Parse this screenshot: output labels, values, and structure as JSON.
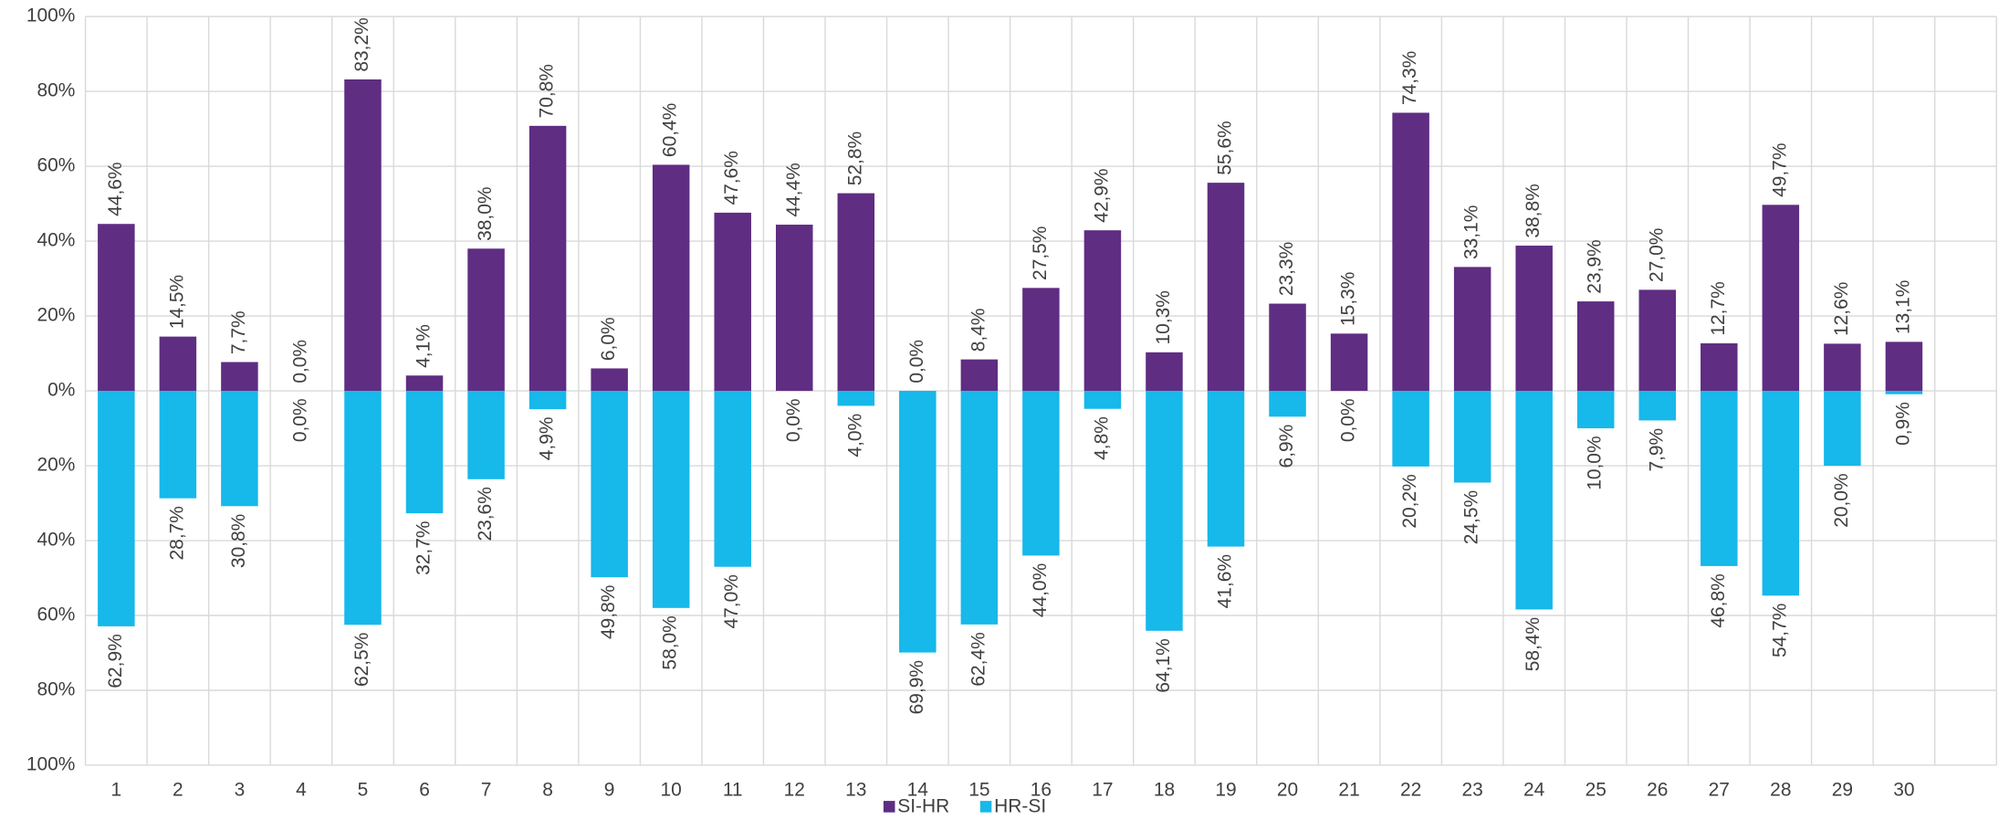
{
  "chart_data": {
    "type": "bar",
    "categories": [
      "1",
      "2",
      "3",
      "4",
      "5",
      "6",
      "7",
      "8",
      "9",
      "10",
      "11",
      "12",
      "13",
      "14",
      "15",
      "16",
      "17",
      "18",
      "19",
      "20",
      "21",
      "22",
      "23",
      "24",
      "25",
      "26",
      "27",
      "28",
      "29",
      "30"
    ],
    "series": [
      {
        "name": "SI-HR",
        "color": "#5f2d82",
        "values": [
          44.6,
          14.5,
          7.7,
          0,
          83.2,
          4.1,
          38.0,
          70.8,
          6.0,
          60.4,
          47.6,
          44.4,
          52.8,
          0,
          8.4,
          27.5,
          42.9,
          10.3,
          55.6,
          23.3,
          15.3,
          74.3,
          33.1,
          38.8,
          23.9,
          27.0,
          12.7,
          49.7,
          12.6,
          13.1
        ],
        "value_labels": [
          "44,6%",
          "14,5%",
          "7,7%",
          "0,0%",
          "83,2%",
          "4,1%",
          "38,0%",
          "70,8%",
          "6,0%",
          "60,4%",
          "47,6%",
          "44,4%",
          "52,8%",
          "0,0%",
          "8,4%",
          "27,5%",
          "42,9%",
          "10,3%",
          "55,6%",
          "23,3%",
          "15,3%",
          "74,3%",
          "33,1%",
          "38,8%",
          "23,9%",
          "27,0%",
          "12,7%",
          "49,7%",
          "12,6%",
          "13,1%"
        ]
      },
      {
        "name": "HR-SI",
        "color": "#17b8ea",
        "values": [
          -62.9,
          -28.7,
          -30.8,
          0,
          -62.5,
          -32.7,
          -23.6,
          -4.9,
          -49.8,
          -58.0,
          -47.0,
          0,
          -4.0,
          -69.9,
          -62.4,
          -44.0,
          -4.8,
          -64.1,
          -41.6,
          -6.9,
          0,
          -20.2,
          -24.5,
          -58.4,
          -10.0,
          -7.9,
          -46.8,
          -54.7,
          -20.0,
          -0.9
        ],
        "value_labels": [
          "62,9%",
          "28,7%",
          "30,8%",
          "0,0%",
          "62,5%",
          "32,7%",
          "23,6%",
          "4,9%",
          "49,8%",
          "58,0%",
          "47,0%",
          "0,0%",
          "4,0%",
          "69,9%",
          "62,4%",
          "44,0%",
          "4,8%",
          "64,1%",
          "41,6%",
          "6,9%",
          "0,0%",
          "20,2%",
          "24,5%",
          "58,4%",
          "10,0%",
          "7,9%",
          "46,8%",
          "54,7%",
          "20,0%",
          "0,9%"
        ]
      }
    ],
    "ylim": [
      -100,
      100
    ],
    "yticks": [
      {
        "value": -100,
        "label": "100%"
      },
      {
        "value": -80,
        "label": "80%"
      },
      {
        "value": -60,
        "label": "60%"
      },
      {
        "value": -40,
        "label": "40%"
      },
      {
        "value": -20,
        "label": "20%"
      },
      {
        "value": 0,
        "label": "0%"
      },
      {
        "value": 20,
        "label": "20%"
      },
      {
        "value": 40,
        "label": "40%"
      },
      {
        "value": 60,
        "label": "60%"
      },
      {
        "value": 80,
        "label": "80%"
      },
      {
        "value": 100,
        "label": "100%"
      }
    ],
    "grid": true,
    "legend": "bottom"
  }
}
